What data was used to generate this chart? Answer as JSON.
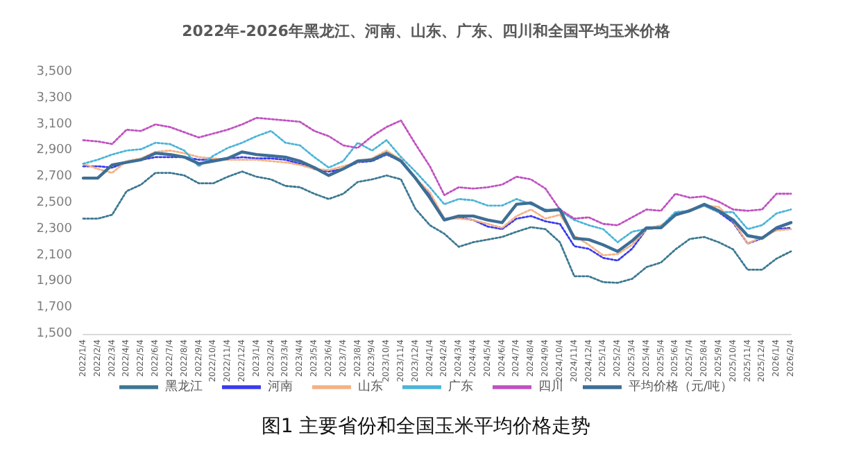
{
  "chart_data": {
    "type": "line",
    "title": "2022年-2026年黑龙江、河南、山东、广东、四川和全国平均玉米价格",
    "annotations": [
      "图1 主要省份和全国玉米平均价格走势"
    ],
    "categories": [
      "2022/1/4",
      "2022/2/4",
      "2022/3/4",
      "2022/4/4",
      "2022/5/4",
      "2022/6/4",
      "2022/7/4",
      "2022/8/4",
      "2022/9/4",
      "2022/10/4",
      "2022/11/4",
      "2022/12/4",
      "2023/1/4",
      "2023/2/4",
      "2023/3/4",
      "2023/4/4",
      "2023/5/4",
      "2023/6/4",
      "2023/7/4",
      "2023/8/4",
      "2023/9/4",
      "2023/10/4",
      "2023/11/4",
      "2023/12/4",
      "2024/1/4",
      "2024/2/4",
      "2024/3/4",
      "2024/4/4",
      "2024/5/4",
      "2024/6/4",
      "2024/7/4",
      "2024/8/4",
      "2024/9/4",
      "2024/10/4",
      "2024/11/4",
      "2024/12/4",
      "2025/1/4",
      "2025/2/4",
      "2025/3/4",
      "2025/4/4",
      "2025/5/4",
      "2025/6/4",
      "2025/7/4",
      "2025/8/4",
      "2025/9/4",
      "2025/10/4",
      "2025/11/4",
      "2025/12/4",
      "2026/1/4",
      "2026/2/4"
    ],
    "series": [
      {
        "name": "黑龙江",
        "color": "#3b7891",
        "line_style": "dotted",
        "values": [
          2380,
          2380,
          2410,
          2590,
          2640,
          2730,
          2730,
          2710,
          2650,
          2650,
          2700,
          2740,
          2700,
          2680,
          2630,
          2620,
          2570,
          2530,
          2570,
          2660,
          2680,
          2710,
          2680,
          2455,
          2330,
          2265,
          2165,
          2200,
          2220,
          2240,
          2280,
          2315,
          2300,
          2200,
          1940,
          1940,
          1895,
          1890,
          1920,
          2010,
          2045,
          2145,
          2225,
          2240,
          2200,
          2145,
          1990,
          1990,
          2075,
          2130
        ]
      },
      {
        "name": "河南",
        "color": "#3a3af0",
        "line_style": "dotted",
        "values": [
          2780,
          2780,
          2770,
          2810,
          2830,
          2850,
          2850,
          2850,
          2830,
          2830,
          2840,
          2850,
          2840,
          2840,
          2830,
          2800,
          2760,
          2740,
          2760,
          2810,
          2820,
          2870,
          2820,
          2690,
          2560,
          2380,
          2390,
          2370,
          2320,
          2300,
          2380,
          2400,
          2360,
          2340,
          2170,
          2150,
          2080,
          2060,
          2150,
          2300,
          2310,
          2420,
          2440,
          2480,
          2430,
          2350,
          2190,
          2230,
          2300,
          2310
        ]
      },
      {
        "name": "山东",
        "color": "#f4b183",
        "line_style": "dotted",
        "values": [
          2800,
          2760,
          2730,
          2820,
          2840,
          2890,
          2900,
          2880,
          2850,
          2840,
          2830,
          2830,
          2830,
          2820,
          2810,
          2790,
          2760,
          2750,
          2780,
          2810,
          2840,
          2900,
          2830,
          2690,
          2580,
          2380,
          2380,
          2370,
          2340,
          2310,
          2400,
          2450,
          2380,
          2410,
          2250,
          2180,
          2100,
          2110,
          2180,
          2300,
          2330,
          2400,
          2450,
          2480,
          2470,
          2360,
          2190,
          2240,
          2290,
          2300
        ]
      },
      {
        "name": "广东",
        "color": "#4bb4d8",
        "line_style": "dotted",
        "values": [
          2800,
          2830,
          2870,
          2900,
          2910,
          2960,
          2950,
          2900,
          2780,
          2860,
          2920,
          2960,
          3010,
          3050,
          2960,
          2940,
          2850,
          2770,
          2820,
          2960,
          2900,
          2980,
          2850,
          2740,
          2620,
          2490,
          2530,
          2520,
          2480,
          2480,
          2530,
          2490,
          2450,
          2440,
          2370,
          2330,
          2300,
          2200,
          2280,
          2300,
          2320,
          2430,
          2440,
          2480,
          2430,
          2430,
          2300,
          2330,
          2420,
          2450
        ]
      },
      {
        "name": "四川",
        "color": "#c050c0",
        "line_style": "dotted",
        "values": [
          2980,
          2970,
          2950,
          3060,
          3050,
          3100,
          3080,
          3040,
          3000,
          3030,
          3060,
          3100,
          3150,
          3140,
          3130,
          3120,
          3050,
          3010,
          2940,
          2920,
          3010,
          3080,
          3130,
          2950,
          2780,
          2560,
          2620,
          2610,
          2620,
          2640,
          2700,
          2680,
          2610,
          2450,
          2380,
          2390,
          2340,
          2330,
          2390,
          2450,
          2440,
          2570,
          2540,
          2550,
          2510,
          2450,
          2440,
          2450,
          2570,
          2570
        ]
      },
      {
        "name": "平均价格（元/吨）",
        "color": "#3d6e96",
        "line_style": "solid",
        "values": [
          2690,
          2690,
          2790,
          2810,
          2830,
          2880,
          2870,
          2850,
          2800,
          2820,
          2840,
          2890,
          2870,
          2860,
          2850,
          2820,
          2770,
          2710,
          2760,
          2820,
          2830,
          2880,
          2820,
          2690,
          2540,
          2370,
          2400,
          2400,
          2370,
          2350,
          2490,
          2500,
          2440,
          2450,
          2230,
          2220,
          2180,
          2130,
          2210,
          2310,
          2310,
          2410,
          2440,
          2490,
          2440,
          2370,
          2250,
          2230,
          2310,
          2350
        ]
      }
    ],
    "ylim": [
      1500,
      3500
    ],
    "yticks": [
      {
        "value": 1500,
        "label": "1,500"
      },
      {
        "value": 1700,
        "label": "1,700"
      },
      {
        "value": 1900,
        "label": "1,900"
      },
      {
        "value": 2100,
        "label": "2,100"
      },
      {
        "value": 2300,
        "label": "2,300"
      },
      {
        "value": 2500,
        "label": "2,500"
      },
      {
        "value": 2700,
        "label": "2,700"
      },
      {
        "value": 2900,
        "label": "2,900"
      },
      {
        "value": 3100,
        "label": "3,100"
      },
      {
        "value": 3300,
        "label": "3,300"
      },
      {
        "value": 3500,
        "label": "3,500"
      }
    ],
    "legend": "bottom",
    "marker": "none",
    "grid": false
  }
}
